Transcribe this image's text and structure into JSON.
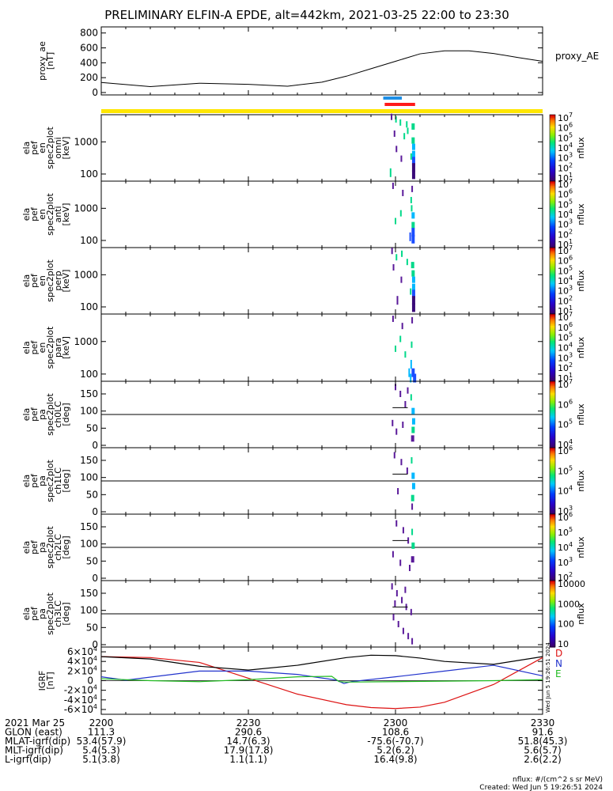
{
  "title": "PRELIMINARY ELFIN-A EPDE, alt=442km, 2021-03-25 22:00 to 23:30",
  "colors": {
    "black": "#000000",
    "sci_bar": "#1e8fe6",
    "sci_red": "#ff1a1a",
    "fgm_yellow": "#ffe600",
    "d_red": "#dd1111",
    "n_blue": "#2233cc",
    "e_green": "#22bb22",
    "ae_black": "#000000"
  },
  "chart_data": [
    {
      "id": "proxy_ae",
      "type": "line",
      "ylabel_lines": [
        "proxy_ae",
        "[nT]"
      ],
      "legend": "proxy_AE",
      "ylim": [
        0,
        850
      ],
      "yticks": [
        "0",
        "200",
        "400",
        "600",
        "800"
      ],
      "yticks_values": [
        0,
        200,
        400,
        600,
        800
      ],
      "x_minutes": [
        0,
        10,
        20,
        30,
        38,
        45,
        50,
        55,
        60,
        65,
        70,
        75,
        80,
        85,
        90
      ],
      "values": [
        135,
        80,
        125,
        110,
        85,
        140,
        220,
        320,
        420,
        520,
        560,
        560,
        525,
        470,
        420
      ]
    },
    {
      "id": "en_omni",
      "type": "heatmap",
      "ylabel_lines": [
        "ela",
        "pef",
        "en",
        "spec2plot",
        "omni",
        "[keV]"
      ],
      "ylim_keV": [
        60,
        7000
      ],
      "yscale": "log",
      "yticks": [
        "100",
        "1000"
      ],
      "yticks_values": [
        100,
        1000
      ],
      "cbar_ticks": [
        "10",
        "10",
        "10",
        "10",
        "10",
        "10",
        "10"
      ],
      "cbar_exps": [
        "1",
        "2",
        "3",
        "4",
        "5",
        "6",
        "7"
      ],
      "cbar_label": "nflux",
      "flux_cells": [
        {
          "t": 59.2,
          "e": 6000,
          "v": 5
        },
        {
          "t": 60.1,
          "e": 5000,
          "v": 4
        },
        {
          "t": 61.0,
          "e": 4000,
          "v": 4
        },
        {
          "t": 62.3,
          "e": 3500,
          "v": 4
        },
        {
          "t": 63.6,
          "e": 3000,
          "v": 4
        },
        {
          "t": 62.5,
          "e": 2200,
          "v": 4
        },
        {
          "t": 59.8,
          "e": 1800,
          "v": 5
        },
        {
          "t": 61.8,
          "e": 1500,
          "v": 4
        },
        {
          "t": 63.6,
          "e": 1100,
          "v": 4
        },
        {
          "t": 63.7,
          "e": 700,
          "v": 3
        },
        {
          "t": 63.7,
          "e": 420,
          "v": 3
        },
        {
          "t": 63.7,
          "e": 250,
          "v": 2
        },
        {
          "t": 63.7,
          "e": 160,
          "v": 1
        },
        {
          "t": 63.7,
          "e": 95,
          "v": 1
        },
        {
          "t": 63.2,
          "e": 350,
          "v": 4
        },
        {
          "t": 60.2,
          "e": 600,
          "v": 5
        },
        {
          "t": 61.2,
          "e": 300,
          "v": 5
        },
        {
          "t": 59.0,
          "e": 110,
          "v": 4
        }
      ]
    },
    {
      "id": "en_anti",
      "type": "heatmap",
      "ylabel_lines": [
        "ela",
        "pef",
        "en",
        "spec2plot",
        "anti",
        "[keV]"
      ],
      "ylim_keV": [
        60,
        7000
      ],
      "yscale": "log",
      "yticks": [
        "100",
        "1000"
      ],
      "yticks_values": [
        100,
        1000
      ],
      "cbar_ticks": [
        "10",
        "10",
        "10",
        "10",
        "10",
        "10",
        "10"
      ],
      "cbar_exps": [
        "1",
        "2",
        "3",
        "4",
        "5",
        "6",
        "7"
      ],
      "cbar_label": "nflux",
      "flux_cells": [
        {
          "t": 59.5,
          "e": 5000,
          "v": 5
        },
        {
          "t": 61.5,
          "e": 3000,
          "v": 5
        },
        {
          "t": 63.4,
          "e": 4000,
          "v": 5
        },
        {
          "t": 63.2,
          "e": 1800,
          "v": 4
        },
        {
          "t": 63.3,
          "e": 1000,
          "v": 4
        },
        {
          "t": 61.1,
          "e": 700,
          "v": 4
        },
        {
          "t": 63.6,
          "e": 600,
          "v": 3
        },
        {
          "t": 63.6,
          "e": 300,
          "v": 4
        },
        {
          "t": 63.6,
          "e": 180,
          "v": 2
        },
        {
          "t": 63.6,
          "e": 110,
          "v": 2
        },
        {
          "t": 63.0,
          "e": 130,
          "v": 2
        },
        {
          "t": 60.0,
          "e": 400,
          "v": 4
        }
      ]
    },
    {
      "id": "en_perp",
      "type": "heatmap",
      "ylabel_lines": [
        "ela",
        "pef",
        "en",
        "spec2plot",
        "perp",
        "[keV]"
      ],
      "ylim_keV": [
        60,
        7000
      ],
      "yscale": "log",
      "yticks": [
        "100",
        "1000"
      ],
      "yticks_values": [
        100,
        1000
      ],
      "cbar_ticks": [
        "10",
        "10",
        "10",
        "10",
        "10",
        "10",
        "10"
      ],
      "cbar_exps": [
        "1",
        "2",
        "3",
        "4",
        "5",
        "6",
        "7"
      ],
      "cbar_label": "nflux",
      "flux_cells": [
        {
          "t": 59.3,
          "e": 5500,
          "v": 5
        },
        {
          "t": 60.2,
          "e": 3500,
          "v": 4
        },
        {
          "t": 61.3,
          "e": 4500,
          "v": 4
        },
        {
          "t": 62.4,
          "e": 2500,
          "v": 4
        },
        {
          "t": 63.5,
          "e": 2000,
          "v": 4
        },
        {
          "t": 59.6,
          "e": 1700,
          "v": 5
        },
        {
          "t": 63.6,
          "e": 1100,
          "v": 4
        },
        {
          "t": 63.7,
          "e": 700,
          "v": 3
        },
        {
          "t": 63.7,
          "e": 420,
          "v": 3
        },
        {
          "t": 63.7,
          "e": 250,
          "v": 2
        },
        {
          "t": 63.7,
          "e": 160,
          "v": 1
        },
        {
          "t": 63.7,
          "e": 95,
          "v": 1
        },
        {
          "t": 61.2,
          "e": 700,
          "v": 5
        },
        {
          "t": 60.4,
          "e": 160,
          "v": 5
        },
        {
          "t": 63.1,
          "e": 300,
          "v": 4
        }
      ]
    },
    {
      "id": "en_para",
      "type": "heatmap",
      "ylabel_lines": [
        "ela",
        "pef",
        "en",
        "spec2plot",
        "para",
        "[keV]"
      ],
      "ylim_keV": [
        60,
        7000
      ],
      "yscale": "log",
      "yticks": [
        "100",
        "1000"
      ],
      "yticks_values": [
        100,
        1000
      ],
      "cbar_ticks": [
        "10",
        "10",
        "10",
        "10",
        "10",
        "10",
        "10"
      ],
      "cbar_exps": [
        "1",
        "2",
        "3",
        "4",
        "5",
        "6",
        "7"
      ],
      "cbar_label": "nflux",
      "flux_cells": [
        {
          "t": 59.5,
          "e": 5000,
          "v": 5
        },
        {
          "t": 61.4,
          "e": 3000,
          "v": 5
        },
        {
          "t": 63.4,
          "e": 4500,
          "v": 5
        },
        {
          "t": 61.0,
          "e": 1200,
          "v": 4
        },
        {
          "t": 63.3,
          "e": 800,
          "v": 4
        },
        {
          "t": 62.0,
          "e": 400,
          "v": 4
        },
        {
          "t": 63.2,
          "e": 200,
          "v": 3
        },
        {
          "t": 62.8,
          "e": 110,
          "v": 3
        },
        {
          "t": 63.6,
          "e": 110,
          "v": 2
        },
        {
          "t": 63.9,
          "e": 75,
          "v": 2
        },
        {
          "t": 63.1,
          "e": 75,
          "v": 3
        },
        {
          "t": 60.0,
          "e": 600,
          "v": 4
        }
      ]
    },
    {
      "id": "pa_ch0LC",
      "type": "heatmap",
      "ylabel_lines": [
        "ela",
        "pef",
        "pa",
        "spec2plot",
        "ch0LC",
        "[deg]"
      ],
      "ylim": [
        0,
        180
      ],
      "yticks": [
        "0",
        "50",
        "100",
        "150"
      ],
      "yticks_values": [
        0,
        50,
        100,
        150
      ],
      "ref_lines": [
        90
      ],
      "cbar_ticks": [
        "10",
        "10",
        "10",
        "10"
      ],
      "cbar_exps": [
        "4",
        "5",
        "6",
        "7"
      ],
      "cbar_label": "nflux",
      "flux_cells": [
        {
          "t": 60.0,
          "p": 170,
          "v": 5
        },
        {
          "t": 61.0,
          "p": 150,
          "v": 5
        },
        {
          "t": 62.0,
          "p": 120,
          "v": 5
        },
        {
          "t": 62.5,
          "p": 160,
          "v": 5
        },
        {
          "t": 63.2,
          "p": 140,
          "v": 4
        },
        {
          "t": 63.6,
          "p": 100,
          "v": 3
        },
        {
          "t": 63.7,
          "p": 70,
          "v": 3
        },
        {
          "t": 63.6,
          "p": 45,
          "v": 4
        },
        {
          "t": 63.5,
          "p": 20,
          "v": 5
        },
        {
          "t": 59.4,
          "p": 65,
          "v": 5
        },
        {
          "t": 60.2,
          "p": 40,
          "v": 5
        },
        {
          "t": 61.5,
          "p": 60,
          "v": 5
        }
      ]
    },
    {
      "id": "pa_ch1LC",
      "type": "heatmap",
      "ylabel_lines": [
        "ela",
        "pef",
        "pa",
        "spec2plot",
        "ch1LC",
        "[deg]"
      ],
      "ylim": [
        0,
        180
      ],
      "yticks": [
        "0",
        "50",
        "100",
        "150"
      ],
      "yticks_values": [
        0,
        50,
        100,
        150
      ],
      "ref_lines": [
        90
      ],
      "cbar_ticks": [
        "10",
        "10",
        "10",
        "10"
      ],
      "cbar_exps": [
        "3",
        "4",
        "5",
        "6"
      ],
      "cbar_label": "nflux",
      "flux_cells": [
        {
          "t": 59.8,
          "p": 165,
          "v": 5
        },
        {
          "t": 61.2,
          "p": 145,
          "v": 5
        },
        {
          "t": 62.4,
          "p": 120,
          "v": 5
        },
        {
          "t": 63.3,
          "p": 150,
          "v": 4
        },
        {
          "t": 63.6,
          "p": 105,
          "v": 3
        },
        {
          "t": 63.7,
          "p": 75,
          "v": 3
        },
        {
          "t": 63.5,
          "p": 40,
          "v": 4
        },
        {
          "t": 63.4,
          "p": 15,
          "v": 5
        },
        {
          "t": 60.5,
          "p": 60,
          "v": 5
        }
      ]
    },
    {
      "id": "pa_ch2LC",
      "type": "heatmap",
      "ylabel_lines": [
        "ela",
        "pef",
        "pa",
        "spec2plot",
        "ch2LC",
        "[deg]"
      ],
      "ylim": [
        0,
        180
      ],
      "yticks": [
        "0",
        "50",
        "100",
        "150"
      ],
      "yticks_values": [
        0,
        50,
        100,
        150
      ],
      "ref_lines": [
        90
      ],
      "cbar_ticks": [
        "10",
        "10",
        "10",
        "10",
        "10"
      ],
      "cbar_exps": [
        "2",
        "3",
        "4",
        "5",
        "6"
      ],
      "cbar_label": "nflux",
      "flux_cells": [
        {
          "t": 60.2,
          "p": 160,
          "v": 5
        },
        {
          "t": 61.6,
          "p": 140,
          "v": 5
        },
        {
          "t": 62.6,
          "p": 110,
          "v": 5
        },
        {
          "t": 63.4,
          "p": 135,
          "v": 4
        },
        {
          "t": 63.6,
          "p": 95,
          "v": 4
        },
        {
          "t": 63.5,
          "p": 55,
          "v": 5
        },
        {
          "t": 62.9,
          "p": 30,
          "v": 5
        },
        {
          "t": 59.5,
          "p": 70,
          "v": 5
        },
        {
          "t": 61.0,
          "p": 45,
          "v": 5
        }
      ]
    },
    {
      "id": "pa_ch3LC",
      "type": "heatmap",
      "ylabel_lines": [
        "ela",
        "pef",
        "pa",
        "spec2plot",
        "ch3LC",
        "[deg]"
      ],
      "ylim": [
        0,
        180
      ],
      "yticks": [
        "0",
        "50",
        "100",
        "150"
      ],
      "yticks_values": [
        0,
        50,
        100,
        150
      ],
      "ref_lines": [
        90
      ],
      "cbar_ticks": [
        "10",
        "100",
        "1000",
        "10000"
      ],
      "cbar_label": "nflux",
      "flux_cells": [
        {
          "t": 59.3,
          "p": 170,
          "v": 5
        },
        {
          "t": 60.3,
          "p": 150,
          "v": 5
        },
        {
          "t": 61.3,
          "p": 130,
          "v": 5
        },
        {
          "t": 62.2,
          "p": 110,
          "v": 5
        },
        {
          "t": 63.2,
          "p": 95,
          "v": 5
        },
        {
          "t": 59.6,
          "p": 80,
          "v": 5
        },
        {
          "t": 60.6,
          "p": 60,
          "v": 5
        },
        {
          "t": 61.6,
          "p": 40,
          "v": 5
        },
        {
          "t": 62.6,
          "p": 25,
          "v": 5
        },
        {
          "t": 63.4,
          "p": 10,
          "v": 5
        },
        {
          "t": 59.9,
          "p": 120,
          "v": 5
        },
        {
          "t": 62.0,
          "p": 160,
          "v": 5
        }
      ]
    },
    {
      "id": "igrf",
      "type": "line",
      "ylabel_lines": [
        "IGRF",
        "[nT]"
      ],
      "ylim": [
        -65000,
        65000
      ],
      "yticks": [
        "-6×10",
        "-4×10",
        "-2×10",
        "0",
        "2×10",
        "4×10",
        "6×10"
      ],
      "yticks_values": [
        -60000,
        -40000,
        -20000,
        0,
        20000,
        40000,
        60000
      ],
      "ytick_exp": "4",
      "legend": [
        "D",
        "N",
        "E"
      ],
      "series": [
        {
          "name": "D",
          "color_key": "d_red",
          "x_minutes": [
            0,
            10,
            20,
            30,
            40,
            50,
            55,
            60,
            65,
            70,
            80,
            90
          ],
          "values": [
            50000,
            48000,
            38000,
            5000,
            -28000,
            -50000,
            -56000,
            -58000,
            -55000,
            -45000,
            -8000,
            48000
          ]
        },
        {
          "name": "N",
          "color_key": "n_blue",
          "x_minutes": [
            0,
            5,
            20,
            30,
            40,
            48,
            49.5,
            51,
            60,
            70,
            80,
            90
          ],
          "values": [
            8000,
            1000,
            20000,
            20000,
            13000,
            1000,
            -6000,
            -2000,
            8000,
            20000,
            32000,
            10000
          ]
        },
        {
          "name": "E",
          "color_key": "e_green",
          "x_minutes": [
            0,
            10,
            20,
            30,
            40,
            47,
            48.5,
            50,
            60,
            70,
            80,
            90
          ],
          "values": [
            4000,
            0,
            -2000,
            2000,
            8000,
            9000,
            -2000,
            -3000,
            -2000,
            -1000,
            0,
            2000
          ]
        },
        {
          "name": "magnitude",
          "color_key": "ae_black",
          "x_minutes": [
            0,
            10,
            20,
            30,
            40,
            50,
            55,
            60,
            65,
            70,
            80,
            90
          ],
          "values": [
            50000,
            45000,
            30000,
            22000,
            32000,
            48000,
            53000,
            52000,
            47000,
            40000,
            34000,
            50000
          ]
        }
      ]
    }
  ],
  "x_axis": {
    "range_minutes": [
      0,
      90
    ],
    "rows": [
      {
        "label": "2021 Mar 25",
        "values": [
          "2200",
          "2230",
          "2300",
          "2330"
        ]
      },
      {
        "label": "GLON (east)",
        "values": [
          "111.3",
          "290.6",
          "108.6",
          "91.6"
        ]
      },
      {
        "label": "MLAT-igrf(dip)",
        "values": [
          "53.4(57.9)",
          "14.7(6.3)",
          "-75.6(-70.7)",
          "51.8(45.3)"
        ]
      },
      {
        "label": "MLT-igrf(dip)",
        "values": [
          "5.4(5.3)",
          "17.9(17.8)",
          "5.2(6.2)",
          "5.6(5.7)"
        ]
      },
      {
        "label": "L-igrf(dip)",
        "values": [
          "5.1(3.8)",
          "1.1(1.1)",
          "16.4(9.8)",
          "2.6(2.2)"
        ]
      }
    ]
  },
  "footer": {
    "units": "nflux: #/(cm^2 s sr MeV)",
    "created": "Created: Wed Jun  5 19:26:51 2024"
  },
  "side_stamp": "Wed Jun  5 19:26:51 2024"
}
